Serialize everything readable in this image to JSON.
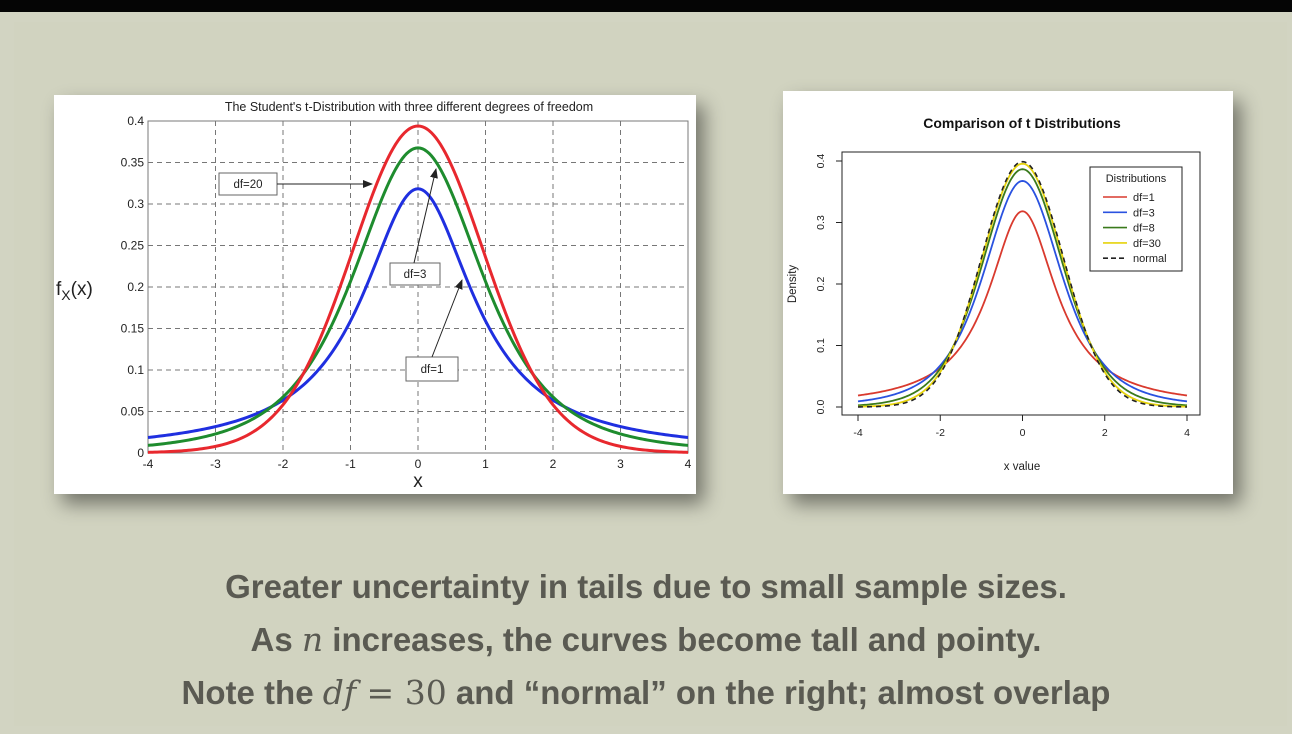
{
  "chart_data": [
    {
      "type": "line",
      "title": "The Student's t-Distribution with three different degrees of freedom",
      "xlabel": "x",
      "ylabel": "f_X(x)",
      "xlim": [
        -4,
        4
      ],
      "ylim": [
        0,
        0.4
      ],
      "grid": true,
      "xticks": [
        "-4",
        "-3",
        "-2",
        "-1",
        "0",
        "1",
        "2",
        "3",
        "4"
      ],
      "yticks": [
        "0",
        "0.05",
        "0.1",
        "0.15",
        "0.2",
        "0.25",
        "0.3",
        "0.35",
        "0.4"
      ],
      "series": [
        {
          "df": 20,
          "color": "#e8282e"
        },
        {
          "df": 3,
          "color": "#1e8c2e"
        },
        {
          "df": 1,
          "color": "#1f2fe0"
        }
      ],
      "annotations": [
        "df=20",
        "df=3",
        "df=1"
      ]
    },
    {
      "type": "line",
      "title": "Comparison of t Distributions",
      "xlabel": "x value",
      "ylabel": "Density",
      "xlim": [
        -4,
        4
      ],
      "ylim": [
        0,
        0.4
      ],
      "grid": false,
      "xticks": [
        "-4",
        "-2",
        "0",
        "2",
        "4"
      ],
      "yticks": [
        "0.0",
        "0.1",
        "0.2",
        "0.3",
        "0.4"
      ],
      "legend": {
        "title": "Distributions",
        "placement": "top-right",
        "entries": [
          {
            "name": "df=1",
            "color": "#d93a2e",
            "dash": false
          },
          {
            "name": "df=3",
            "color": "#2a52e0",
            "dash": false
          },
          {
            "name": "df=8",
            "color": "#3a7a1c",
            "dash": false
          },
          {
            "name": "df=30",
            "color": "#e6d30c",
            "dash": false
          },
          {
            "name": "normal",
            "color": "#222222",
            "dash": true
          }
        ]
      },
      "series": [
        {
          "name": "df=1",
          "df": 1,
          "color": "#d93a2e"
        },
        {
          "name": "df=3",
          "df": 3,
          "color": "#2a52e0"
        },
        {
          "name": "df=8",
          "df": 8,
          "color": "#3a7a1c"
        },
        {
          "name": "df=30",
          "df": 30,
          "color": "#e6d30c"
        },
        {
          "name": "normal",
          "df": null,
          "color": "#222222",
          "dash": true
        }
      ]
    }
  ],
  "caption": {
    "line1": "Greater uncertainty in tails due to small sample sizes.",
    "line2_a": "As ",
    "line2_n": "n",
    "line2_b": " increases, the curves become tall and pointy.",
    "line3_a": "Note the ",
    "line3_df": "df",
    "line3_eq": " = 30",
    "line3_b": " and “normal” on the right; almost overlap"
  }
}
